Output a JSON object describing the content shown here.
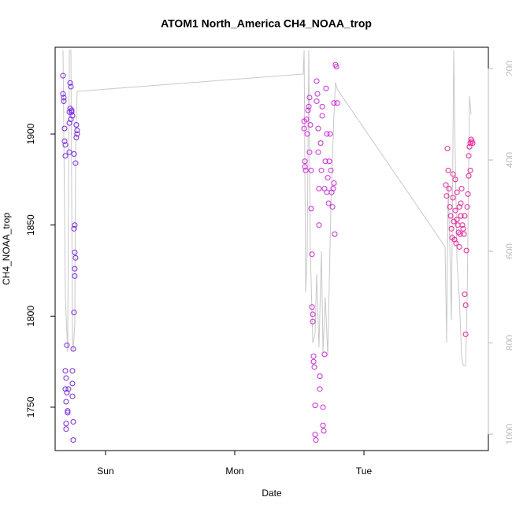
{
  "chart_data": {
    "type": "scatter",
    "title": "ATOM1 North_America CH4_NOAA_trop",
    "xlabel": "Date",
    "ylabel": "CH4_NOAA_trop",
    "xlim": [
      0.61,
      3.963
    ],
    "ylim": [
      1726.2,
      1947.6
    ],
    "y2lim": [
      1036,
      153.4
    ],
    "xticks": [
      {
        "value": 1,
        "label": "Sun"
      },
      {
        "value": 2,
        "label": "Mon"
      },
      {
        "value": 3,
        "label": "Tue"
      }
    ],
    "yticks": [
      1750,
      1800,
      1850,
      1900
    ],
    "y2ticks": [
      200,
      400,
      600,
      800,
      1000
    ],
    "y2color": "#bbbbbb",
    "series": [
      {
        "color": "#7a22ff",
        "x": [
          0.671,
          0.671,
          0.677,
          0.677,
          0.683,
          0.683,
          0.689,
          0.689,
          0.689,
          0.695,
          0.689,
          0.695,
          0.695,
          0.695,
          0.701,
          0.701,
          0.707,
          0.707,
          0.713,
          0.72,
          0.72,
          0.72,
          0.726,
          0.726,
          0.732,
          0.732,
          0.738,
          0.738,
          0.744,
          0.744,
          0.744,
          0.744,
          0.75,
          0.75,
          0.75,
          0.756,
          0.756,
          0.756,
          0.762,
          0.762,
          0.762,
          0.762,
          0.768,
          0.768,
          0.774,
          0.774,
          0.78,
          0.78
        ],
        "values": [
          1932,
          1922,
          1920,
          1918,
          1903,
          1896,
          1894,
          1888,
          1770,
          1766,
          1760,
          1753,
          1741,
          1738,
          1784,
          1758,
          1748,
          1747,
          1760,
          1912,
          1906,
          1890,
          1928,
          1914,
          1908,
          1926,
          1913,
          1912,
          1910,
          1770,
          1763,
          1756,
          1742,
          1732,
          1782,
          1889,
          1802,
          1848,
          1850,
          1835,
          1826,
          1822,
          1832,
          1884,
          1905,
          1898,
          1902,
          1900
        ]
      },
      {
        "color": "#dd22ee",
        "x": [
          2.537,
          2.537,
          2.543,
          2.543,
          2.549,
          2.555,
          2.561,
          2.567,
          2.573,
          2.579,
          2.579,
          2.585,
          2.591,
          2.591,
          2.598,
          2.598,
          2.604,
          2.604,
          2.61,
          2.61,
          2.616,
          2.622,
          2.622,
          2.628,
          2.634,
          2.634,
          2.64,
          2.646,
          2.646,
          2.652,
          2.652,
          2.659,
          2.659,
          2.665,
          2.671,
          2.677,
          2.677,
          2.683,
          2.683,
          2.689,
          2.695,
          2.695,
          2.701,
          2.707,
          2.713,
          2.713,
          2.72,
          2.726,
          2.732,
          2.738,
          2.744,
          2.75,
          2.756,
          2.762,
          2.768,
          2.768,
          2.774,
          2.78,
          2.787,
          2.793
        ],
        "values": [
          1907,
          1903,
          1885,
          1882,
          1880,
          1908,
          1900,
          1913,
          1915,
          1920,
          1890,
          1905,
          1880,
          1859,
          1834,
          1805,
          1801,
          1797,
          1778,
          1775,
          1772,
          1751,
          1735,
          1732,
          1929,
          1918,
          1922,
          1903,
          1890,
          1870,
          1850,
          1760,
          1767,
          1895,
          1880,
          1915,
          1910,
          1740,
          1750,
          1737,
          1779,
          1870,
          1885,
          1925,
          1900,
          1868,
          1876,
          1862,
          1885,
          1900,
          1880,
          1868,
          1860,
          1870,
          1873,
          1917,
          1845,
          1938,
          1937,
          1917
        ]
      },
      {
        "color": "#ff1a9c",
        "x": [
          3.634,
          3.64,
          3.646,
          3.652,
          3.659,
          3.665,
          3.671,
          3.677,
          3.683,
          3.689,
          3.689,
          3.695,
          3.701,
          3.707,
          3.707,
          3.713,
          3.72,
          3.72,
          3.726,
          3.732,
          3.738,
          3.738,
          3.744,
          3.75,
          3.75,
          3.756,
          3.762,
          3.768,
          3.774,
          3.78,
          3.78,
          3.787,
          3.787,
          3.793,
          3.799,
          3.805,
          3.811,
          3.811,
          3.817,
          3.823,
          3.823,
          3.829,
          3.835,
          3.841
        ],
        "values": [
          1872,
          1866,
          1892,
          1880,
          1870,
          1860,
          1855,
          1848,
          1843,
          1878,
          1865,
          1852,
          1842,
          1875,
          1858,
          1840,
          1853,
          1868,
          1850,
          1846,
          1860,
          1838,
          1845,
          1862,
          1855,
          1870,
          1850,
          1848,
          1845,
          1855,
          1812,
          1806,
          1790,
          1836,
          1860,
          1867,
          1877,
          1888,
          1893,
          1895,
          1880,
          1897,
          1896,
          1895
        ]
      },
      {
        "type": "line",
        "axis": "y2",
        "color": "#c8c8c8",
        "x": [
          0.671,
          0.689,
          0.707,
          0.72,
          0.732,
          0.744,
          0.75,
          0.762,
          0.768,
          0.78,
          2.53,
          2.537,
          2.549,
          2.561,
          2.573,
          2.585,
          2.604,
          2.622,
          2.634,
          2.652,
          2.671,
          2.683,
          2.701,
          2.72,
          2.744,
          2.768,
          2.78,
          2.793,
          3.628,
          3.64,
          3.652,
          3.665,
          3.677,
          3.695,
          3.707,
          3.72,
          3.738,
          3.756,
          3.768,
          3.787,
          3.799,
          3.817,
          3.829
        ],
        "values": [
          160,
          700,
          820,
          160,
          160,
          780,
          820,
          760,
          400,
          250,
          212,
          160,
          690,
          600,
          160,
          600,
          800,
          780,
          650,
          810,
          600,
          820,
          700,
          830,
          500,
          300,
          230,
          245,
          590,
          800,
          450,
          600,
          750,
          160,
          400,
          620,
          700,
          830,
          850,
          850,
          700,
          260,
          300
        ]
      }
    ]
  }
}
